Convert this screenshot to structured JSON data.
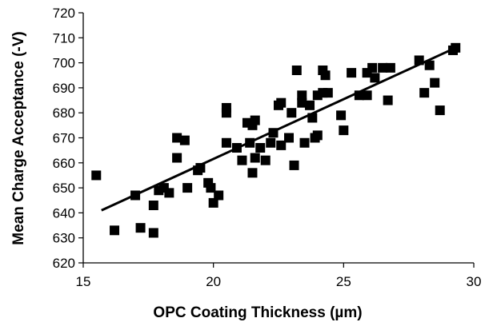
{
  "chart_data": {
    "type": "scatter",
    "title": "",
    "xlabel": "OPC Coating Thickness (µm)",
    "ylabel": "Mean Charge Acceptance (-V)",
    "xlim": [
      15,
      30
    ],
    "ylim": [
      620,
      720
    ],
    "x_ticks": [
      "15",
      "20",
      "25",
      "30"
    ],
    "y_ticks": [
      "620",
      "630",
      "640",
      "650",
      "660",
      "670",
      "680",
      "690",
      "700",
      "710",
      "720"
    ],
    "grid": false,
    "legend": "none",
    "marker": "square",
    "marker_color": "#000000",
    "trendline": {
      "x": [
        15.7,
        29.3
      ],
      "y": [
        641,
        706
      ]
    },
    "points": [
      {
        "x": 15.5,
        "y": 655
      },
      {
        "x": 16.2,
        "y": 633
      },
      {
        "x": 17.0,
        "y": 647
      },
      {
        "x": 17.2,
        "y": 634
      },
      {
        "x": 17.7,
        "y": 643
      },
      {
        "x": 17.7,
        "y": 632
      },
      {
        "x": 17.9,
        "y": 649
      },
      {
        "x": 18.1,
        "y": 650
      },
      {
        "x": 18.3,
        "y": 648
      },
      {
        "x": 18.6,
        "y": 670
      },
      {
        "x": 18.6,
        "y": 662
      },
      {
        "x": 18.9,
        "y": 669
      },
      {
        "x": 19.0,
        "y": 650
      },
      {
        "x": 19.4,
        "y": 657
      },
      {
        "x": 19.5,
        "y": 658
      },
      {
        "x": 19.8,
        "y": 652
      },
      {
        "x": 19.9,
        "y": 650
      },
      {
        "x": 20.0,
        "y": 644
      },
      {
        "x": 20.2,
        "y": 647
      },
      {
        "x": 20.5,
        "y": 682
      },
      {
        "x": 20.5,
        "y": 680
      },
      {
        "x": 20.5,
        "y": 668
      },
      {
        "x": 20.9,
        "y": 666
      },
      {
        "x": 21.1,
        "y": 661
      },
      {
        "x": 21.3,
        "y": 676
      },
      {
        "x": 21.4,
        "y": 668
      },
      {
        "x": 21.5,
        "y": 675
      },
      {
        "x": 21.5,
        "y": 656
      },
      {
        "x": 21.6,
        "y": 662
      },
      {
        "x": 21.6,
        "y": 677
      },
      {
        "x": 21.8,
        "y": 666
      },
      {
        "x": 22.0,
        "y": 661
      },
      {
        "x": 22.2,
        "y": 668
      },
      {
        "x": 22.3,
        "y": 672
      },
      {
        "x": 22.5,
        "y": 683
      },
      {
        "x": 22.6,
        "y": 684
      },
      {
        "x": 22.6,
        "y": 667
      },
      {
        "x": 22.9,
        "y": 670
      },
      {
        "x": 23.0,
        "y": 680
      },
      {
        "x": 23.1,
        "y": 659
      },
      {
        "x": 23.2,
        "y": 697
      },
      {
        "x": 23.4,
        "y": 687
      },
      {
        "x": 23.4,
        "y": 684
      },
      {
        "x": 23.5,
        "y": 668
      },
      {
        "x": 23.7,
        "y": 683
      },
      {
        "x": 23.8,
        "y": 678
      },
      {
        "x": 23.9,
        "y": 670
      },
      {
        "x": 24.0,
        "y": 671
      },
      {
        "x": 24.0,
        "y": 687
      },
      {
        "x": 24.2,
        "y": 697
      },
      {
        "x": 24.2,
        "y": 688
      },
      {
        "x": 24.3,
        "y": 695
      },
      {
        "x": 24.4,
        "y": 688
      },
      {
        "x": 24.9,
        "y": 679
      },
      {
        "x": 25.0,
        "y": 673
      },
      {
        "x": 25.3,
        "y": 696
      },
      {
        "x": 25.6,
        "y": 687
      },
      {
        "x": 25.9,
        "y": 687
      },
      {
        "x": 25.9,
        "y": 696
      },
      {
        "x": 26.1,
        "y": 698
      },
      {
        "x": 26.2,
        "y": 694
      },
      {
        "x": 26.5,
        "y": 698
      },
      {
        "x": 26.7,
        "y": 685
      },
      {
        "x": 26.8,
        "y": 698
      },
      {
        "x": 27.9,
        "y": 701
      },
      {
        "x": 28.1,
        "y": 688
      },
      {
        "x": 28.3,
        "y": 699
      },
      {
        "x": 28.5,
        "y": 692
      },
      {
        "x": 28.7,
        "y": 681
      },
      {
        "x": 29.2,
        "y": 705
      },
      {
        "x": 29.3,
        "y": 706
      }
    ]
  }
}
